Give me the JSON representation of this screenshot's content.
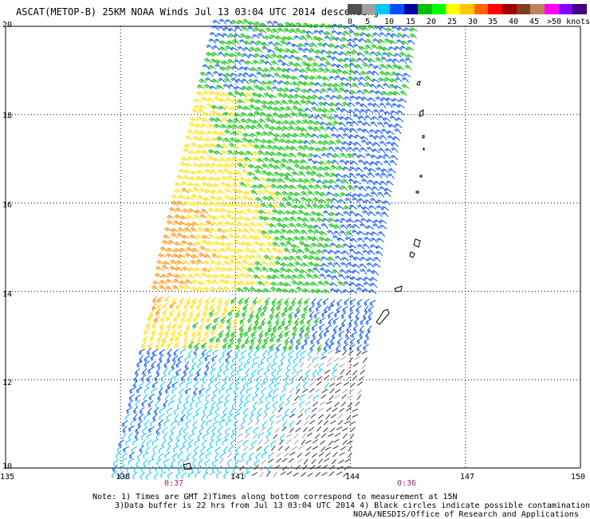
{
  "title": "ASCAT(METOP-B) 25KM NOAA Winds  Jul 13 03:04 UTC 2014 descending",
  "legend": {
    "labels": [
      "0",
      "5",
      "10",
      "15",
      "20",
      "25",
      "30",
      "35",
      "40",
      "45",
      ">50 knots"
    ],
    "colors": [
      "#505050",
      "#a0a0a0",
      "#00c8ff",
      "#0050ff",
      "#0000a0",
      "#00c000",
      "#00ff00",
      "#ffff00",
      "#ffc800",
      "#ff6400",
      "#ff0000",
      "#a00000",
      "#804020",
      "#c08060",
      "#ff00ff",
      "#8000ff",
      "#400080"
    ]
  },
  "map": {
    "lat_labels": [
      "20",
      "18",
      "16",
      "14",
      "12",
      "10"
    ],
    "lon_labels": [
      "135",
      "138",
      "141",
      "144",
      "147",
      "150"
    ],
    "time_labels": [
      "0:37",
      "0:36"
    ],
    "lon_range": [
      135,
      150
    ],
    "lat_range": [
      10,
      20
    ]
  },
  "notes": {
    "line1": "Note: 1) Times are GMT 2)Times along bottom correspond to measurement at 15N",
    "line2": "3)Data buffer is 22 hrs from Jul 13 03:04 UTC 2014 4) Black circles indicate possible contamination",
    "line3": "NOAA/NESDIS/Office of Research and Applications"
  }
}
